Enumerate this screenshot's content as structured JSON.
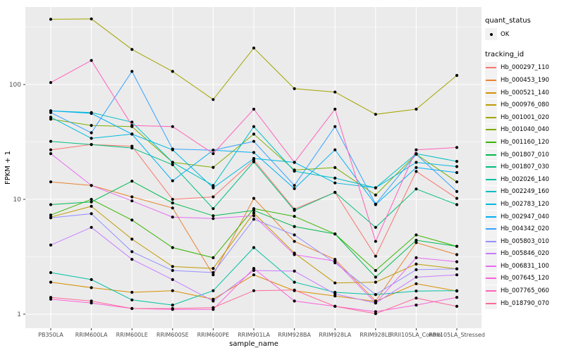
{
  "figure": {
    "panel_bg": "#EBEBEB",
    "grid_color": "#FFFFFF",
    "tick_label_color": "#4D4D4D",
    "axis_title_color": "#000000",
    "point_color": "#000000",
    "legend_key_bg": "#F2F2F2"
  },
  "chart_data": {
    "type": "line",
    "title": "",
    "xlabel": "sample_name",
    "ylabel": "FPKM + 1",
    "y_scale": "log10",
    "y_ticks": [
      1,
      10,
      100
    ],
    "y_minor_ticks": [
      3.162,
      31.62,
      316.2
    ],
    "ylim": [
      0.75,
      470
    ],
    "grid": true,
    "legend_position": "right",
    "point_shape": "filled-circle",
    "categories": [
      "PB350LA",
      "RRIM600LA",
      "RRIM600LE",
      "RRIM600SE",
      "RRIM600PE",
      "RRIM901LA",
      "RRIM928BA",
      "RRIM928LA",
      "RRIM928LE",
      "RRII105LA_Control",
      "RRII105LA_Stressed"
    ],
    "series": [
      {
        "name": "Hb_000297_110",
        "color": "#F8766D",
        "values": [
          27,
          30,
          29,
          10,
          10.5,
          22,
          8.2,
          11.5,
          3.2,
          17.5,
          10.2
        ]
      },
      {
        "name": "Hb_000453_190",
        "color": "#EA8331",
        "values": [
          14.2,
          13.2,
          10.5,
          8.4,
          2.2,
          10.2,
          4.3,
          3.0,
          1.3,
          4.2,
          3.3
        ]
      },
      {
        "name": "Hb_000521_140",
        "color": "#D89000",
        "values": [
          1.9,
          1.7,
          1.55,
          1.6,
          1.35,
          2.2,
          1.6,
          1.44,
          1.29,
          1.84,
          1.59
        ]
      },
      {
        "name": "Hb_000976_080",
        "color": "#C09B00",
        "values": [
          7.0,
          8.7,
          4.5,
          2.6,
          2.5,
          7.6,
          3.4,
          1.87,
          1.9,
          2.73,
          2.48
        ]
      },
      {
        "name": "Hb_001001_020",
        "color": "#A3A500",
        "values": [
          370,
          373,
          202,
          130,
          74,
          208,
          92,
          86,
          55,
          61,
          120
        ]
      },
      {
        "name": "Hb_001040_040",
        "color": "#7CAE00",
        "values": [
          50,
          44,
          43,
          21,
          19,
          37,
          18,
          18.9,
          10.9,
          24.7,
          14.2
        ]
      },
      {
        "name": "Hb_001160_120",
        "color": "#39B600",
        "values": [
          7.3,
          10,
          6.6,
          3.8,
          3.1,
          8.3,
          7.1,
          5.0,
          2.4,
          4.9,
          3.9
        ]
      },
      {
        "name": "Hb_001807_010",
        "color": "#00BB4E",
        "values": [
          9.0,
          9.5,
          14.4,
          9.3,
          7.2,
          8.0,
          5.8,
          5.0,
          2.1,
          4.4,
          3.9
        ]
      },
      {
        "name": "Hb_001807_030",
        "color": "#00BF7D",
        "values": [
          32,
          30,
          28,
          20,
          8.3,
          21.2,
          8.0,
          11.5,
          5.7,
          12.3,
          9.0
        ]
      },
      {
        "name": "Hb_002026_140",
        "color": "#00C1A3",
        "values": [
          2.3,
          2.0,
          1.33,
          1.2,
          1.6,
          3.8,
          1.9,
          1.55,
          1.48,
          1.59,
          1.6
        ]
      },
      {
        "name": "Hb_002249_160",
        "color": "#00BFC4",
        "values": [
          59,
          57,
          47,
          21,
          13.2,
          43,
          17.6,
          15.3,
          12.6,
          25,
          21.4
        ]
      },
      {
        "name": "Hb_002783_120",
        "color": "#00BAE0",
        "values": [
          52,
          34,
          37,
          27,
          12.6,
          22.7,
          21,
          13.9,
          12.6,
          21,
          19.3
        ]
      },
      {
        "name": "Hb_002947_040",
        "color": "#00B0F6",
        "values": [
          59,
          56,
          37,
          14.5,
          26.8,
          25.6,
          12.4,
          27,
          9.0,
          18.9,
          17.1
        ]
      },
      {
        "name": "Hb_004342_020",
        "color": "#35A2FF",
        "values": [
          57,
          38,
          130,
          27.4,
          26.8,
          32,
          13.2,
          43,
          9.1,
          24.7,
          11.7
        ]
      },
      {
        "name": "Hb_005803_010",
        "color": "#9590FF",
        "values": [
          6.9,
          7.5,
          3.5,
          2.4,
          2.3,
          6.7,
          4.9,
          2.8,
          1.48,
          2.44,
          2.48
        ]
      },
      {
        "name": "Hb_005846_020",
        "color": "#C77CFF",
        "values": [
          4.0,
          5.7,
          3.0,
          2.0,
          1.3,
          2.4,
          2.37,
          1.5,
          1.25,
          2.1,
          2.2
        ]
      },
      {
        "name": "Hb_006831_100",
        "color": "#E76BF3",
        "values": [
          25,
          13.2,
          9.7,
          7.0,
          6.8,
          7.2,
          3.3,
          2.9,
          1.25,
          3.1,
          2.86
        ]
      },
      {
        "name": "Hb_007645_120",
        "color": "#FA62DB",
        "values": [
          1.35,
          1.25,
          1.12,
          1.1,
          1.1,
          2.5,
          1.3,
          1.17,
          1.05,
          1.2,
          1.4
        ]
      },
      {
        "name": "Hb_007765_060",
        "color": "#FF62BC",
        "values": [
          104,
          162,
          44,
          43,
          25,
          61,
          21,
          61,
          4.3,
          27,
          28.3
        ]
      },
      {
        "name": "Hb_018790_070",
        "color": "#FF6A98",
        "values": [
          1.4,
          1.3,
          1.12,
          1.12,
          1.14,
          1.6,
          1.62,
          1.17,
          1.01,
          1.38,
          1.17
        ]
      }
    ],
    "legend": {
      "quant_title": "quant_status",
      "quant_items": [
        "OK"
      ],
      "series_title": "tracking_id"
    }
  }
}
